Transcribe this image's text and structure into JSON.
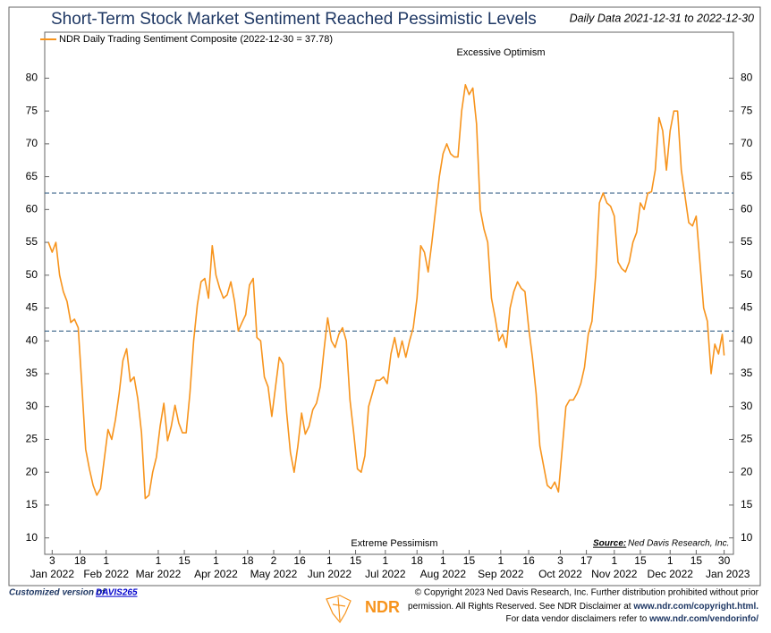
{
  "chart_data": {
    "type": "line",
    "title": "Short-Term Stock Market Sentiment Reached Pessimistic Levels",
    "subtitle": "Daily Data 2021-12-31 to 2022-12-30",
    "annotations": {
      "top": "Excessive Optimism",
      "bottom": "Extreme Pessimism"
    },
    "source": {
      "label": "Source:",
      "text": "Ned Davis Research, Inc."
    },
    "reference_lines": [
      62.5,
      41.5
    ],
    "reference_color": "#1f4e79",
    "legend": "top-left",
    "ylim": [
      7.5,
      87
    ],
    "yticks": [
      10,
      15,
      20,
      25,
      30,
      35,
      40,
      45,
      50,
      55,
      60,
      65,
      70,
      75,
      80
    ],
    "xlim": [
      "2021-12-30",
      "2023-01-04"
    ],
    "xticks": [
      {
        "value": "2022-01-03",
        "label": "3"
      },
      {
        "value": "2022-01-18",
        "label": "18"
      },
      {
        "value": "2022-02-01",
        "label": "1"
      },
      {
        "value": "2022-03-01",
        "label": "1"
      },
      {
        "value": "2022-03-15",
        "label": "15"
      },
      {
        "value": "2022-04-01",
        "label": "1"
      },
      {
        "value": "2022-04-18",
        "label": "18"
      },
      {
        "value": "2022-05-02",
        "label": "2"
      },
      {
        "value": "2022-05-16",
        "label": "16"
      },
      {
        "value": "2022-06-01",
        "label": "1"
      },
      {
        "value": "2022-06-15",
        "label": "15"
      },
      {
        "value": "2022-07-01",
        "label": "1"
      },
      {
        "value": "2022-07-18",
        "label": "18"
      },
      {
        "value": "2022-08-01",
        "label": "1"
      },
      {
        "value": "2022-08-15",
        "label": "15"
      },
      {
        "value": "2022-09-01",
        "label": "1"
      },
      {
        "value": "2022-09-16",
        "label": "16"
      },
      {
        "value": "2022-10-03",
        "label": "3"
      },
      {
        "value": "2022-10-17",
        "label": "17"
      },
      {
        "value": "2022-11-01",
        "label": "1"
      },
      {
        "value": "2022-11-15",
        "label": "15"
      },
      {
        "value": "2022-12-01",
        "label": "1"
      },
      {
        "value": "2022-12-15",
        "label": "15"
      },
      {
        "value": "2022-12-30",
        "label": "30"
      }
    ],
    "month_labels": [
      {
        "value": "2022-01-03",
        "label": "Jan 2022"
      },
      {
        "value": "2022-02-01",
        "label": "Feb 2022"
      },
      {
        "value": "2022-03-01",
        "label": "Mar 2022"
      },
      {
        "value": "2022-04-01",
        "label": "Apr 2022"
      },
      {
        "value": "2022-05-02",
        "label": "May 2022"
      },
      {
        "value": "2022-06-01",
        "label": "Jun 2022"
      },
      {
        "value": "2022-07-01",
        "label": "Jul 2022"
      },
      {
        "value": "2022-08-01",
        "label": "Aug 2022"
      },
      {
        "value": "2022-09-01",
        "label": "Sep 2022"
      },
      {
        "value": "2022-10-03",
        "label": "Oct 2022"
      },
      {
        "value": "2022-11-01",
        "label": "Nov 2022"
      },
      {
        "value": "2022-12-01",
        "label": "Dec 2022"
      },
      {
        "value": "2023-01-01",
        "label": "Jan 2023"
      }
    ],
    "x": [
      "2022-01-01",
      "2022-01-03",
      "2022-01-05",
      "2022-01-07",
      "2022-01-09",
      "2022-01-11",
      "2022-01-13",
      "2022-01-15",
      "2022-01-17",
      "2022-01-19",
      "2022-01-21",
      "2022-01-23",
      "2022-01-25",
      "2022-01-27",
      "2022-01-29",
      "2022-01-31",
      "2022-02-02",
      "2022-02-04",
      "2022-02-06",
      "2022-02-08",
      "2022-02-10",
      "2022-02-12",
      "2022-02-14",
      "2022-02-16",
      "2022-02-18",
      "2022-02-20",
      "2022-02-22",
      "2022-02-24",
      "2022-02-26",
      "2022-02-28",
      "2022-03-02",
      "2022-03-04",
      "2022-03-06",
      "2022-03-08",
      "2022-03-10",
      "2022-03-12",
      "2022-03-14",
      "2022-03-16",
      "2022-03-18",
      "2022-03-20",
      "2022-03-22",
      "2022-03-24",
      "2022-03-26",
      "2022-03-28",
      "2022-03-30",
      "2022-04-01",
      "2022-04-03",
      "2022-04-05",
      "2022-04-07",
      "2022-04-09",
      "2022-04-11",
      "2022-04-13",
      "2022-04-15",
      "2022-04-17",
      "2022-04-19",
      "2022-04-21",
      "2022-04-23",
      "2022-04-25",
      "2022-04-27",
      "2022-04-29",
      "2022-05-01",
      "2022-05-03",
      "2022-05-05",
      "2022-05-07",
      "2022-05-09",
      "2022-05-11",
      "2022-05-13",
      "2022-05-15",
      "2022-05-17",
      "2022-05-19",
      "2022-05-21",
      "2022-05-23",
      "2022-05-25",
      "2022-05-27",
      "2022-05-29",
      "2022-05-31",
      "2022-06-02",
      "2022-06-04",
      "2022-06-06",
      "2022-06-08",
      "2022-06-10",
      "2022-06-12",
      "2022-06-14",
      "2022-06-16",
      "2022-06-18",
      "2022-06-20",
      "2022-06-22",
      "2022-06-24",
      "2022-06-26",
      "2022-06-28",
      "2022-06-30",
      "2022-07-02",
      "2022-07-04",
      "2022-07-06",
      "2022-07-08",
      "2022-07-10",
      "2022-07-12",
      "2022-07-14",
      "2022-07-16",
      "2022-07-18",
      "2022-07-20",
      "2022-07-22",
      "2022-07-24",
      "2022-07-26",
      "2022-07-28",
      "2022-07-30",
      "2022-08-01",
      "2022-08-03",
      "2022-08-05",
      "2022-08-07",
      "2022-08-09",
      "2022-08-11",
      "2022-08-13",
      "2022-08-15",
      "2022-08-17",
      "2022-08-19",
      "2022-08-21",
      "2022-08-23",
      "2022-08-25",
      "2022-08-27",
      "2022-08-29",
      "2022-08-31",
      "2022-09-02",
      "2022-09-04",
      "2022-09-06",
      "2022-09-08",
      "2022-09-10",
      "2022-09-12",
      "2022-09-14",
      "2022-09-16",
      "2022-09-18",
      "2022-09-20",
      "2022-09-22",
      "2022-09-24",
      "2022-09-26",
      "2022-09-28",
      "2022-09-30",
      "2022-10-02",
      "2022-10-04",
      "2022-10-06",
      "2022-10-08",
      "2022-10-10",
      "2022-10-12",
      "2022-10-14",
      "2022-10-16",
      "2022-10-18",
      "2022-10-20",
      "2022-10-22",
      "2022-10-24",
      "2022-10-26",
      "2022-10-28",
      "2022-10-30",
      "2022-11-01",
      "2022-11-03",
      "2022-11-05",
      "2022-11-07",
      "2022-11-09",
      "2022-11-11",
      "2022-11-13",
      "2022-11-15",
      "2022-11-17",
      "2022-11-19",
      "2022-11-21",
      "2022-11-23",
      "2022-11-25",
      "2022-11-27",
      "2022-11-29",
      "2022-12-01",
      "2022-12-03",
      "2022-12-05",
      "2022-12-07",
      "2022-12-09",
      "2022-12-11",
      "2022-12-13",
      "2022-12-15",
      "2022-12-17",
      "2022-12-19",
      "2022-12-21",
      "2022-12-23",
      "2022-12-25",
      "2022-12-27",
      "2022-12-29",
      "2022-12-30"
    ],
    "series": [
      {
        "name": "NDR Daily Trading Sentiment Composite (2022-12-30 = 37.78)",
        "color": "#f7941d",
        "values": [
          55,
          53.5,
          55,
          50,
          47.5,
          46,
          42.8,
          43.3,
          42,
          33,
          23.5,
          20.5,
          18,
          16.5,
          17.5,
          22,
          26.5,
          25,
          28,
          32,
          37,
          38.8,
          33.8,
          34.5,
          31.2,
          26,
          16,
          16.5,
          20,
          22.3,
          27,
          30.5,
          24.8,
          27,
          30.2,
          27.5,
          26,
          26,
          32,
          40,
          45.5,
          49,
          49.5,
          46.5,
          54.5,
          50,
          48,
          46.5,
          47,
          49,
          46,
          41.5,
          42.8,
          44,
          48.5,
          49.5,
          40.5,
          40,
          34.5,
          33,
          28.5,
          33,
          37.5,
          36.5,
          29,
          23,
          20,
          24,
          29,
          25.8,
          27,
          29.5,
          30.5,
          33,
          38.5,
          43.5,
          40,
          39,
          41,
          42,
          40,
          31,
          26,
          20.5,
          20,
          22.5,
          30,
          32,
          34,
          34,
          34.5,
          33.5,
          38,
          40.5,
          37.5,
          40,
          37.5,
          40,
          42,
          46.5,
          54.5,
          53.5,
          50.5,
          55,
          60,
          65,
          68.5,
          70,
          68.5,
          68,
          68,
          75,
          79,
          77.5,
          78.5,
          73,
          60,
          57,
          55,
          46.5,
          43.5,
          40,
          41,
          39,
          45,
          47.5,
          49,
          48,
          47.5,
          42,
          37.5,
          32,
          24,
          21,
          18,
          17.5,
          18.5,
          17,
          23.5,
          30,
          31,
          31,
          32,
          33.5,
          36,
          41,
          43,
          50,
          61,
          62.5,
          61,
          60.5,
          59,
          52,
          51,
          50.5,
          52,
          55,
          56.5,
          61,
          60,
          62.5,
          62.7,
          66,
          74,
          72,
          66,
          72,
          75,
          75,
          66,
          62,
          58,
          57.5,
          59,
          52,
          45,
          43,
          35,
          39.5,
          38,
          41,
          37.78
        ]
      }
    ]
  },
  "footer": {
    "custom_prefix": "Customized version of",
    "custom_link": "DAVIS265",
    "logo": "NDR",
    "copyright_1": "© Copyright 2023 Ned Davis Research, Inc. Further distribution prohibited without prior",
    "copyright_2": "permission. All Rights Reserved. See NDR Disclaimer at ",
    "copyright_2_link": "www.ndr.com/copyright.html.",
    "copyright_3": "For data vendor disclaimers refer to ",
    "copyright_3_link": "www.ndr.com/vendorinfo/"
  }
}
